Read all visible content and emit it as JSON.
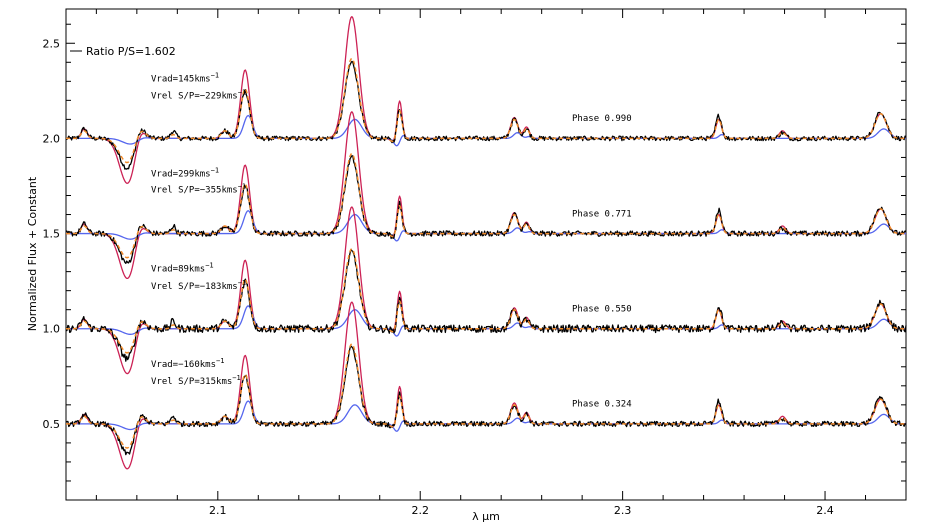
{
  "chart_data": {
    "type": "line",
    "xlabel": "λ μm",
    "ylabel": "Normalized Flux + Constant",
    "xlim": [
      2.025,
      2.44
    ],
    "ylim": [
      0.1,
      2.68
    ],
    "x_ticks": [
      {
        "value": 2.1,
        "label": "2.1"
      },
      {
        "value": 2.2,
        "label": "2.2"
      },
      {
        "value": 2.3,
        "label": "2.3"
      },
      {
        "value": 2.4,
        "label": "2.4"
      }
    ],
    "y_ticks": [
      {
        "value": 0.5,
        "label": "0.5"
      },
      {
        "value": 1.0,
        "label": "1.0"
      },
      {
        "value": 1.5,
        "label": "1.5"
      },
      {
        "value": 2.0,
        "label": "2.0"
      },
      {
        "value": 2.5,
        "label": "2.5"
      }
    ],
    "ratio_label": "Ratio P/S=1.602",
    "colors": {
      "observed": "#000000",
      "model_primary": "#cc2255",
      "model_combined": "#f08a2a",
      "model_secondary": "#5566ee"
    },
    "features": [
      {
        "x": 2.034,
        "w": 0.0015,
        "obs": 0.05,
        "p": 0.05,
        "c": 0.04,
        "s": 0.0
      },
      {
        "x": 2.0555,
        "w": 0.004,
        "obs": -0.16,
        "p": -0.24,
        "c": -0.13,
        "s": -0.03
      },
      {
        "x": 2.0615,
        "w": 0.0025,
        "obs": 0.08,
        "p": 0.08,
        "c": 0.07,
        "s": 0.01
      },
      {
        "x": 2.078,
        "w": 0.0012,
        "obs": 0.04,
        "p": 0.0,
        "c": 0.02,
        "s": 0.0
      },
      {
        "x": 2.1035,
        "w": 0.0018,
        "obs": 0.04,
        "p": 0.04,
        "c": 0.04,
        "s": 0.0
      },
      {
        "x": 2.1135,
        "w": 0.0022,
        "obs": 0.25,
        "p": 0.36,
        "c": 0.26,
        "s": 0.12
      },
      {
        "x": 2.1662,
        "w": 0.0034,
        "obs": 0.4,
        "p": 0.64,
        "c": 0.42,
        "s": 0.1
      },
      {
        "x": 2.187,
        "w": 0.0015,
        "obs": -0.02,
        "p": -0.02,
        "c": -0.02,
        "s": -0.04
      },
      {
        "x": 2.1898,
        "w": 0.0012,
        "obs": 0.16,
        "p": 0.2,
        "c": 0.15,
        "s": 0.02
      },
      {
        "x": 2.2465,
        "w": 0.0018,
        "obs": 0.1,
        "p": 0.11,
        "c": 0.1,
        "s": 0.03
      },
      {
        "x": 2.2525,
        "w": 0.0014,
        "obs": 0.05,
        "p": 0.06,
        "c": 0.05,
        "s": 0.01
      },
      {
        "x": 2.3475,
        "w": 0.0014,
        "obs": 0.12,
        "p": 0.1,
        "c": 0.1,
        "s": 0.02
      },
      {
        "x": 2.379,
        "w": 0.0016,
        "obs": 0.03,
        "p": 0.04,
        "c": 0.03,
        "s": 0.0
      },
      {
        "x": 2.4275,
        "w": 0.0028,
        "obs": 0.14,
        "p": 0.13,
        "c": 0.13,
        "s": 0.05
      }
    ],
    "spectra": [
      {
        "offset": 2.0,
        "scale": 1.0,
        "noise": 0.012,
        "phase": "Phase 0.990",
        "phase_x": 2.275,
        "vrad": "Vrad=145kms",
        "vrel": "Vrel S/P=−229kms",
        "label_x": 2.067,
        "vrad_y": 2.3,
        "vrel_y": 2.21
      },
      {
        "offset": 1.5,
        "scale": 1.0,
        "noise": 0.014,
        "phase": "Phase 0.771",
        "phase_x": 2.275,
        "vrad": "Vrad=299kms",
        "vrel": "Vrel S/P=−355kms",
        "label_x": 2.067,
        "vrad_y": 1.8,
        "vrel_y": 1.715
      },
      {
        "offset": 1.0,
        "scale": 1.0,
        "noise": 0.02,
        "phase": "Phase 0.550",
        "phase_x": 2.275,
        "vrad": "Vrad=89kms",
        "vrel": "Vrel S/P=−183kms",
        "label_x": 2.067,
        "vrad_y": 1.3,
        "vrel_y": 1.21
      },
      {
        "offset": 0.5,
        "scale": 1.0,
        "noise": 0.014,
        "phase": "Phase 0.324",
        "phase_x": 2.275,
        "vrad": "Vrad=−160kms",
        "vrel": "Vrel S/P=315kms",
        "label_x": 2.067,
        "vrad_y": 0.8,
        "vrel_y": 0.71
      }
    ],
    "unit_superscript": "−1"
  }
}
